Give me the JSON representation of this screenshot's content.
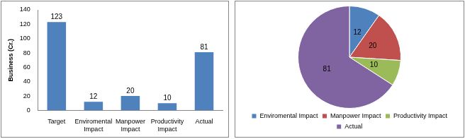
{
  "chart_data": [
    {
      "type": "bar",
      "y_label": "Business (Cr.)",
      "categories": [
        "Target",
        "Enviromental Impact",
        "Manpower Impact",
        "Productivity Impact",
        "Actual"
      ],
      "values": [
        123,
        12,
        20,
        10,
        81
      ],
      "color": "#4f81bd",
      "ylim": [
        0,
        140
      ],
      "yticks": [
        0,
        20,
        40,
        60,
        80,
        100,
        120,
        140
      ],
      "grid": false,
      "data_labels": true
    },
    {
      "type": "pie",
      "categories": [
        "Enviromental Impact",
        "Manpower Impact",
        "Productivity Impact",
        "Actual"
      ],
      "values": [
        12,
        20,
        10,
        81
      ],
      "colors": [
        "#4f81bd",
        "#c0504d",
        "#9bbb59",
        "#8064a2"
      ],
      "legend": "bottom",
      "data_labels": true
    }
  ]
}
